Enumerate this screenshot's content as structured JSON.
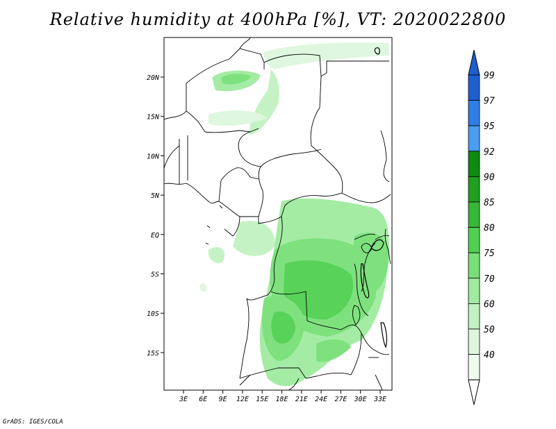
{
  "title": "Relative humidity at 400hPa [%], VT: 2020022800",
  "credit": "GrADS: IGES/COLA",
  "map": {
    "lon_range": [
      0,
      35
    ],
    "lat_range": [
      -20,
      25
    ],
    "lat_ticks": [
      "20N",
      "15N",
      "10N",
      "5N",
      "EQ",
      "5S",
      "10S",
      "15S"
    ],
    "lon_ticks": [
      "3E",
      "6E",
      "9E",
      "12E",
      "15E",
      "18E",
      "21E",
      "24E",
      "27E",
      "30E",
      "33E"
    ]
  },
  "colorbar": {
    "levels": [
      "99",
      "97",
      "95",
      "92",
      "90",
      "85",
      "80",
      "75",
      "70",
      "60",
      "50",
      "40"
    ],
    "colors": [
      "#1e5fd0",
      "#2f7ee6",
      "#4a9df0",
      "#0f8a12",
      "#1fa01f",
      "#37b737",
      "#50d050",
      "#78e078",
      "#a0eba0",
      "#c2f2c2",
      "#ddf7dd",
      "#f0fcf0"
    ]
  }
}
